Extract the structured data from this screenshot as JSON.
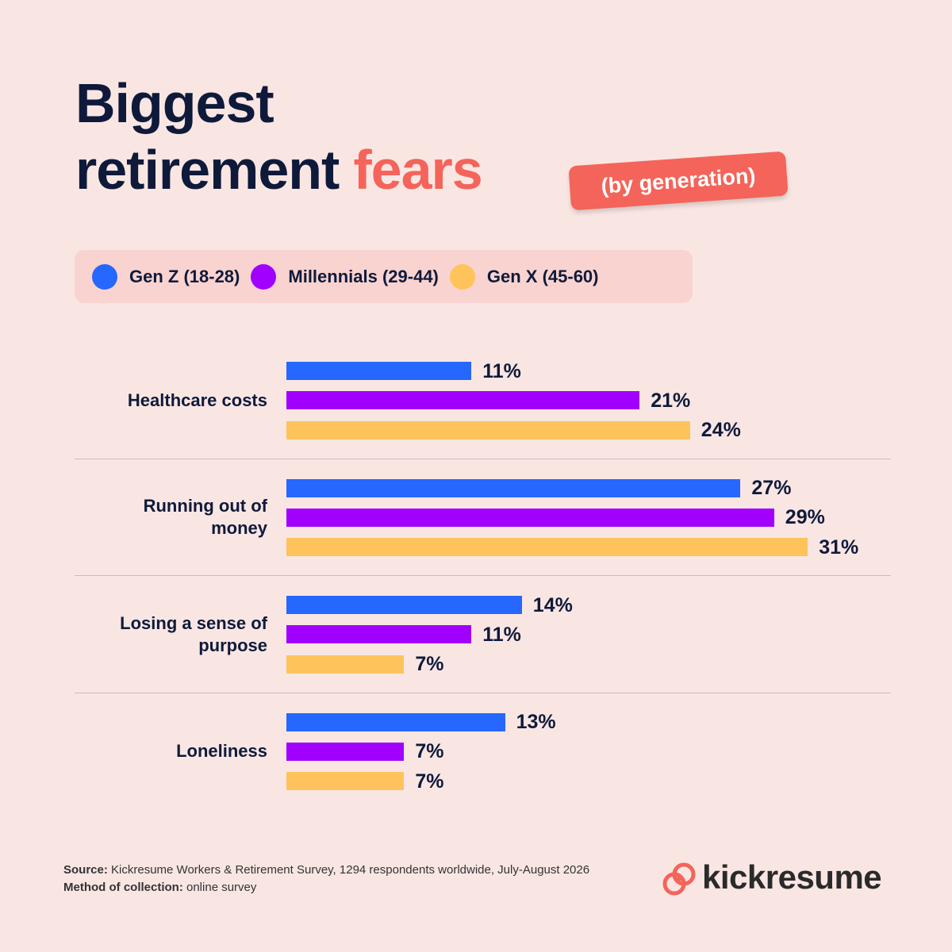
{
  "chart_data": {
    "type": "bar",
    "orientation": "horizontal",
    "title": [
      "Biggest",
      "retirement"
    ],
    "title_highlight": "fears",
    "subtitle": "(by generation)",
    "categories": [
      "Healthcare costs",
      "Running out of money",
      "Losing a sense of purpose",
      "Loneliness"
    ],
    "series": [
      {
        "name": "Gen Z (18-28)",
        "color": "#2667ff",
        "values": [
          11,
          27,
          14,
          13
        ],
        "value_labels": [
          "11%",
          "27%",
          "14%",
          "13%"
        ]
      },
      {
        "name": "Millennials (29-44)",
        "color": "#a100ff",
        "values": [
          21,
          29,
          11,
          7
        ],
        "value_labels": [
          "21%",
          "29%",
          "11%",
          "7%"
        ]
      },
      {
        "name": "Gen X (45-60)",
        "color": "#ffc35c",
        "values": [
          24,
          31,
          7,
          7
        ],
        "value_labels": [
          "24%",
          "31%",
          "7%",
          "7%"
        ]
      }
    ],
    "source_label": "Source:",
    "source_text": "Kickresume Workers & Retirement Survey, 1294 respondents worldwide, July-August 2026",
    "method_label": "Method of collection:",
    "method_text": "online survey",
    "brand": "kickresume"
  }
}
